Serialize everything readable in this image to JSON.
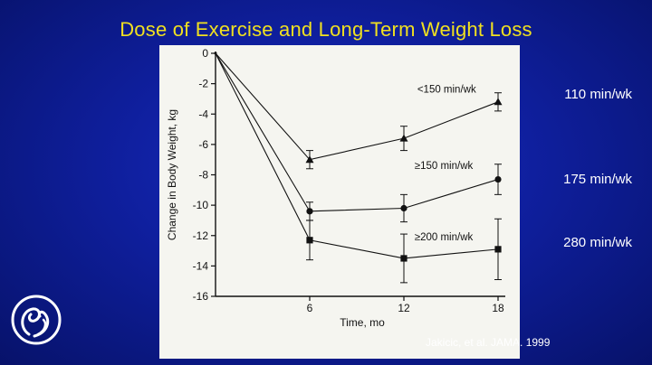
{
  "slide": {
    "title": "Dose of Exercise and Long-Term Weight Loss",
    "citation": "Jakicic, et al. JAMA. 1999",
    "side_labels": [
      "110 min/wk",
      "175 min/wk",
      "280 min/wk"
    ],
    "colors": {
      "title": "#f0e020",
      "text": "#ffffff",
      "background": "#0f1f9e",
      "panel": "#f5f5f0"
    },
    "logo_icon": "swan-logo-icon"
  },
  "chart_data": {
    "type": "line",
    "title": "",
    "xlabel": "Time, mo",
    "ylabel": "Change in Body Weight, kg",
    "xlim": [
      0,
      18
    ],
    "ylim": [
      -16,
      0
    ],
    "x_ticks": [
      6,
      12,
      18
    ],
    "x_tick_labels": [
      "6",
      "12",
      "18"
    ],
    "y_ticks": [
      0,
      -2,
      -4,
      -6,
      -8,
      -10,
      -12,
      -14,
      -16
    ],
    "y_tick_labels": [
      "0",
      "-2",
      "-4",
      "-6",
      "-8",
      "-10",
      "-12",
      "-14",
      "-16"
    ],
    "grid": false,
    "series": [
      {
        "name": "<150 min/wk",
        "marker": "triangle",
        "x": [
          0,
          6,
          12,
          18
        ],
        "values": [
          0,
          -7.0,
          -5.6,
          -3.2
        ],
        "error": [
          0,
          0.6,
          0.8,
          0.6
        ]
      },
      {
        "name": "≥150 min/wk",
        "marker": "circle",
        "x": [
          0,
          6,
          12,
          18
        ],
        "values": [
          0,
          -10.4,
          -10.2,
          -8.3
        ],
        "error": [
          0,
          0.6,
          0.9,
          1.0
        ]
      },
      {
        "name": "≥200 min/wk",
        "marker": "square",
        "x": [
          0,
          6,
          12,
          18
        ],
        "values": [
          0,
          -12.3,
          -13.5,
          -12.9
        ],
        "error": [
          0,
          1.3,
          1.6,
          2.0
        ]
      }
    ]
  }
}
